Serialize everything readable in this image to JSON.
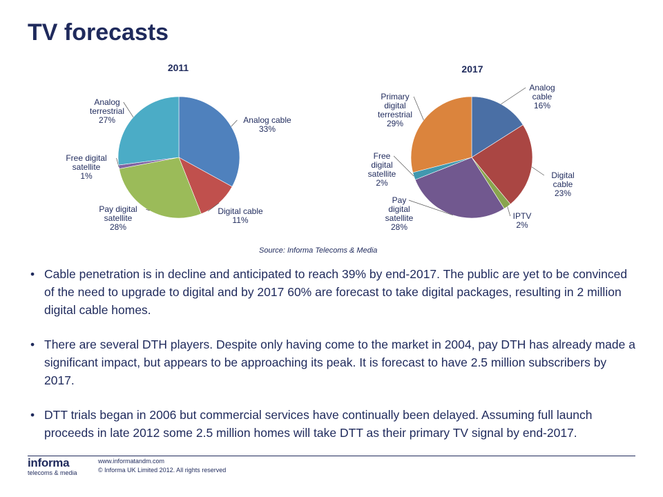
{
  "page": {
    "title": "TV forecasts",
    "source": "Source: Informa Telecoms & Media"
  },
  "chart_data": [
    {
      "type": "pie",
      "title": "2011",
      "slices": [
        {
          "label": "Analog cable",
          "value": 33,
          "pct": "33%",
          "color": "#4f81bd"
        },
        {
          "label": "Digital cable",
          "value": 11,
          "pct": "11%",
          "color": "#c0504d"
        },
        {
          "label": "Pay digital satellite",
          "value": 28,
          "pct": "28%",
          "color": "#9bbb59"
        },
        {
          "label": "Free digital satellite",
          "value": 1,
          "pct": "1%",
          "color": "#8064a2"
        },
        {
          "label": "Analog terrestrial",
          "value": 27,
          "pct": "27%",
          "color": "#4bacc6"
        }
      ]
    },
    {
      "type": "pie",
      "title": "2017",
      "slices": [
        {
          "label": "Analog cable",
          "value": 16,
          "pct": "16%",
          "color": "#4a6fa5"
        },
        {
          "label": "Digital cable",
          "value": 23,
          "pct": "23%",
          "color": "#aa4643"
        },
        {
          "label": "IPTV",
          "value": 2,
          "pct": "2%",
          "color": "#89a54e"
        },
        {
          "label": "Pay digital satellite",
          "value": 28,
          "pct": "28%",
          "color": "#71588f"
        },
        {
          "label": "Free digital satellite",
          "value": 2,
          "pct": "2%",
          "color": "#4198af"
        },
        {
          "label": "Primary digital terrestrial",
          "value": 29,
          "pct": "29%",
          "color": "#db843d"
        }
      ]
    }
  ],
  "bullets": [
    "Cable penetration is in decline and anticipated to reach 39% by end-2017. The public are yet to be convinced of the need to upgrade to digital and by 2017 60% are forecast to take digital packages, resulting in 2 million digital cable homes.",
    "There are several DTH players. Despite only having come to the market in 2004, pay DTH has already made a significant impact, but appears to be approaching its peak. It is forecast to have 2.5 million subscribers by 2017.",
    "DTT trials began in 2006 but commercial services have continually been delayed. Assuming full launch proceeds in late 2012 some 2.5 million homes will take DTT as their primary TV signal by end-2017."
  ],
  "footer": {
    "logo_brand": "informa",
    "logo_sub": "telecoms & media",
    "url": "www.informatandm.com",
    "copyright": "© Informa UK Limited 2012. All rights reserved"
  }
}
